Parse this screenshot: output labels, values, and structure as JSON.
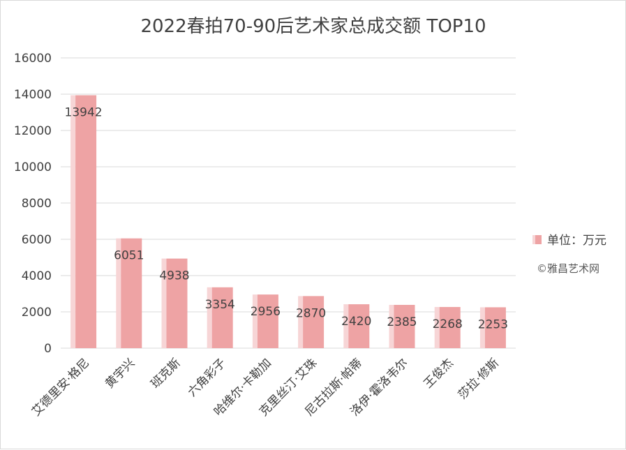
{
  "chart_data": {
    "type": "bar",
    "title": "2022春拍70-90后艺术家总成交额 TOP10",
    "categories": [
      "艾德里安·格尼",
      "黄宇兴",
      "班克斯",
      "六角彩子",
      "哈维尔·卡勒加",
      "克里丝汀·艾珠",
      "尼古拉斯·帕蒂",
      "洛伊·霍洛韦尔",
      "王俊杰",
      "莎拉·修斯"
    ],
    "series": [
      {
        "name": "单位：万元",
        "values": [
          13942,
          6051,
          4938,
          3354,
          2956,
          2870,
          2420,
          2385,
          2268,
          2253
        ]
      }
    ],
    "ylim": [
      0,
      16000
    ],
    "yticks": [
      0,
      2000,
      4000,
      6000,
      8000,
      10000,
      12000,
      14000,
      16000
    ],
    "grid": true,
    "legend_position": "right",
    "colors": {
      "bar": "#eea3a4",
      "bar_highlight": "#f7d5d6",
      "grid": "#d9d9d9",
      "text": "#404040"
    }
  },
  "credit": "©雅昌艺术网"
}
